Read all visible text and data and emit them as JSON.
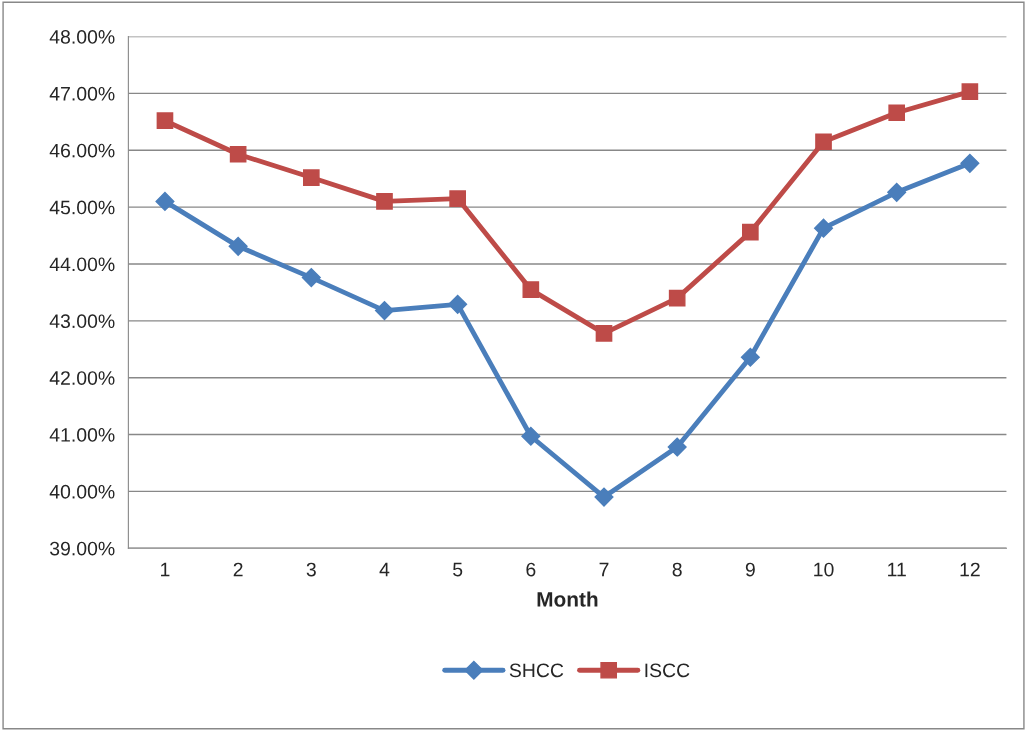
{
  "chart_data": {
    "type": "line",
    "xlabel": "Month",
    "categories": [
      "1",
      "2",
      "3",
      "4",
      "5",
      "6",
      "7",
      "8",
      "9",
      "10",
      "11",
      "12"
    ],
    "series": [
      {
        "name": "SHCC",
        "color": "#4a7ebb",
        "marker": "diamond",
        "values": [
          45.1,
          44.31,
          43.76,
          43.18,
          43.29,
          40.97,
          39.9,
          40.78,
          42.36,
          44.63,
          45.26,
          45.77
        ]
      },
      {
        "name": "ISCC",
        "color": "#be4b48",
        "marker": "square",
        "values": [
          46.52,
          45.93,
          45.52,
          45.1,
          45.15,
          43.55,
          42.78,
          43.4,
          44.56,
          46.15,
          46.66,
          47.03
        ]
      }
    ],
    "ylim": [
      39,
      48
    ],
    "yticks": [
      {
        "value": 39,
        "label": "39.00%"
      },
      {
        "value": 40,
        "label": "40.00%"
      },
      {
        "value": 41,
        "label": "41.00%"
      },
      {
        "value": 42,
        "label": "42.00%"
      },
      {
        "value": 43,
        "label": "43.00%"
      },
      {
        "value": 44,
        "label": "44.00%"
      },
      {
        "value": 45,
        "label": "45.00%"
      },
      {
        "value": 46,
        "label": "46.00%"
      },
      {
        "value": 47,
        "label": "47.00%"
      },
      {
        "value": 48,
        "label": "48.00%"
      }
    ],
    "grid": "y",
    "legend": "bottom",
    "line_style": "solid"
  }
}
